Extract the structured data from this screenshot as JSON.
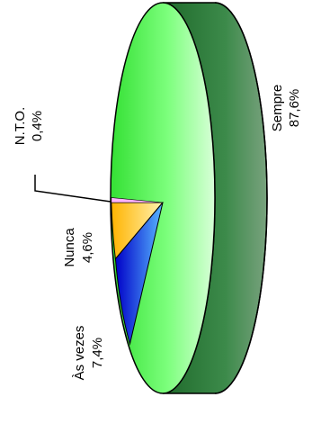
{
  "chart_data": {
    "type": "pie",
    "variant": "3d-rotated",
    "slices": [
      {
        "label": "Sempre",
        "value_text": "87,6%",
        "value": 87.6,
        "color": "#4cff4c",
        "side_color": "#2f8a3a"
      },
      {
        "label": "Às vezes",
        "value_text": "7,4%",
        "value": 7.4,
        "color": "#1f3dff"
      },
      {
        "label": "Nunca",
        "value_text": "4,6%",
        "value": 4.6,
        "color": "#ffd54a"
      },
      {
        "label": "N.T.O.",
        "value_text": "0,4%",
        "value": 0.4,
        "color": "#ffb3ff"
      }
    ]
  }
}
